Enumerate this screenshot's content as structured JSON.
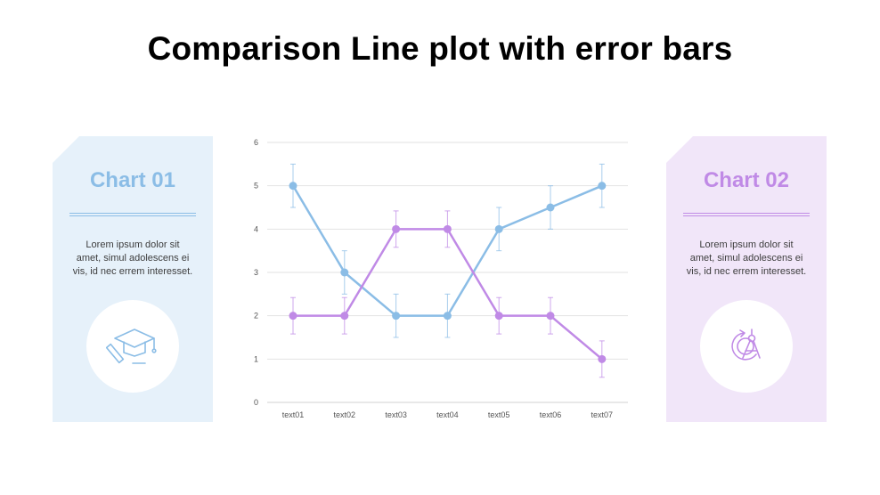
{
  "title": "Comparison Line plot with error bars",
  "panels": {
    "left": {
      "heading": "Chart 01",
      "text_lines": [
        "Lorem ipsum dolor sit",
        "amet, simul adolescens ei",
        "vis, id nec errem interesset."
      ],
      "icon": "graduation-cap-pencil-icon",
      "accent": "#8bbde6",
      "background": "#e6f1fa"
    },
    "right": {
      "heading": "Chart 02",
      "text_lines": [
        "Lorem ipsum dolor sit",
        "amet, simul adolescens ei",
        "vis, id nec errem interesset."
      ],
      "icon": "compass-drafting-icon",
      "accent": "#c08ae6",
      "background": "#f1e6f9"
    }
  },
  "chart_data": {
    "type": "line",
    "title": "Comparison Line plot with error bars",
    "xlabel": "",
    "ylabel": "",
    "categories": [
      "text01",
      "text02",
      "text03",
      "text04",
      "text05",
      "text06",
      "text07"
    ],
    "ylim": [
      0,
      6
    ],
    "yticks": [
      0,
      1,
      2,
      3,
      4,
      5,
      6
    ],
    "grid": true,
    "legend": "none",
    "series": [
      {
        "name": "Chart 01",
        "color": "#8bbde6",
        "values": [
          5,
          3,
          2,
          2,
          4,
          4.5,
          5
        ],
        "error": [
          0.5,
          0.5,
          0.5,
          0.5,
          0.5,
          0.5,
          0.5
        ]
      },
      {
        "name": "Chart 02",
        "color": "#c08ae6",
        "values": [
          2,
          2,
          4,
          4,
          2,
          2,
          1
        ],
        "error": [
          0.42,
          0.42,
          0.42,
          0.42,
          0.42,
          0.42,
          0.42
        ]
      }
    ]
  }
}
